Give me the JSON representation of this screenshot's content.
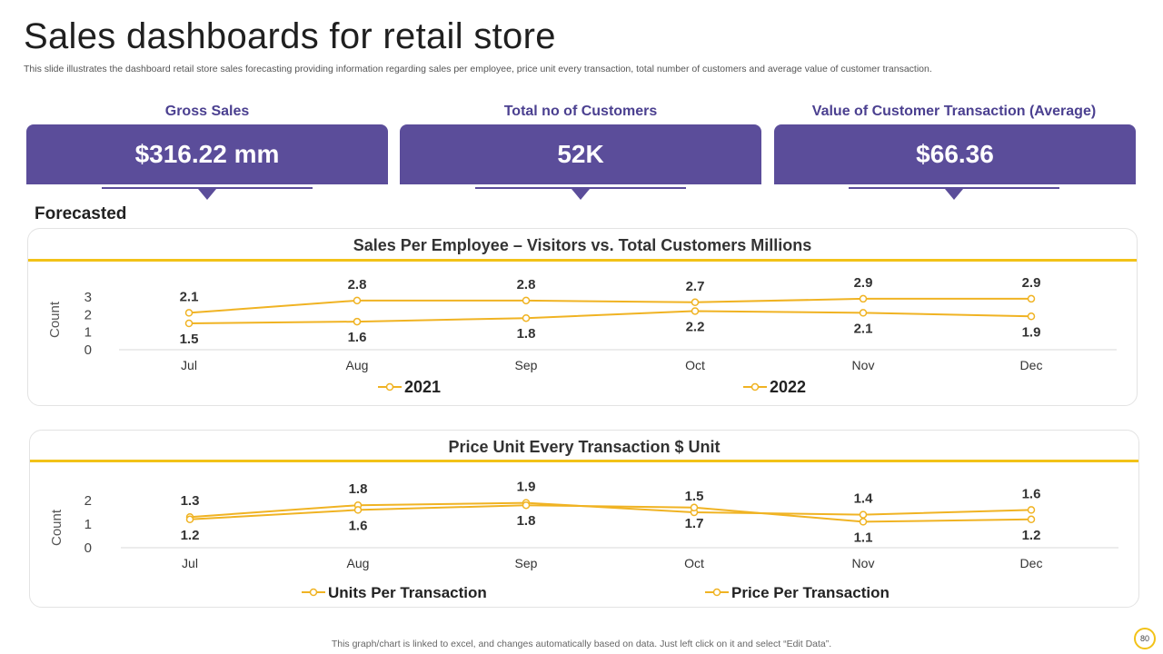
{
  "header": {
    "title": "Sales dashboards for retail store",
    "subtitle": "This slide illustrates the dashboard retail store sales forecasting providing information regarding sales per employee, price unit every  transaction, total number of customers and average value of customer transaction."
  },
  "kpis": [
    {
      "label": "Gross Sales",
      "value": "$316.22 mm"
    },
    {
      "label": "Total no of Customers",
      "value": "52K"
    },
    {
      "label": "Value of Customer Transaction (Average)",
      "value": "$66.36"
    }
  ],
  "section_label": "Forecasted",
  "colors": {
    "accent": "#f2c218",
    "kpi": "#5b4d9a",
    "line": "#f0b323"
  },
  "chart_data": [
    {
      "type": "line",
      "title": "Sales Per Employee – Visitors vs. Total Customers Millions",
      "ylabel": "Count",
      "categories": [
        "Jul",
        "Aug",
        "Sep",
        "Oct",
        "Nov",
        "Dec"
      ],
      "yticks": [
        "0",
        "1",
        "2",
        "3"
      ],
      "ylim": [
        0,
        3
      ],
      "series": [
        {
          "name": "2021",
          "values": [
            2.1,
            2.8,
            2.8,
            2.7,
            2.9,
            2.9
          ],
          "labels": [
            "2.1",
            "2.8",
            "2.8",
            "2.7",
            "2.9",
            "2.9"
          ],
          "label_pos": "above"
        },
        {
          "name": "2022",
          "values": [
            1.5,
            1.6,
            1.8,
            2.2,
            2.1,
            1.9
          ],
          "labels": [
            "1.5",
            "1.6",
            "1.8",
            "2.2",
            "2.1",
            "1.9"
          ],
          "label_pos": "below"
        }
      ],
      "legend": "bottom",
      "grid": false
    },
    {
      "type": "line",
      "title": "Price Unit Every Transaction $ Unit",
      "ylabel": "Count",
      "categories": [
        "Jul",
        "Aug",
        "Sep",
        "Oct",
        "Nov",
        "Dec"
      ],
      "yticks": [
        "0",
        "1",
        "2"
      ],
      "ylim": [
        0,
        2
      ],
      "series": [
        {
          "name": "Units Per Transaction",
          "values": [
            1.3,
            1.8,
            1.9,
            1.5,
            1.4,
            1.6
          ],
          "labels": [
            "1.3",
            "1.8",
            "1.9",
            "1.5",
            "1.4",
            "1.6"
          ],
          "label_pos": "above"
        },
        {
          "name": "Price Per Transaction",
          "values": [
            1.2,
            1.6,
            1.8,
            1.7,
            1.1,
            1.2
          ],
          "labels": [
            "1.2",
            "1.6",
            "1.8",
            "1.7",
            "1.1",
            "1.2"
          ],
          "label_pos": "below"
        }
      ],
      "legend": "bottom",
      "grid": false
    }
  ],
  "footer": {
    "note": "This graph/chart is linked to excel,  and changes automatically based on data. Just left click on it and select “Edit Data”.",
    "page": "80"
  }
}
